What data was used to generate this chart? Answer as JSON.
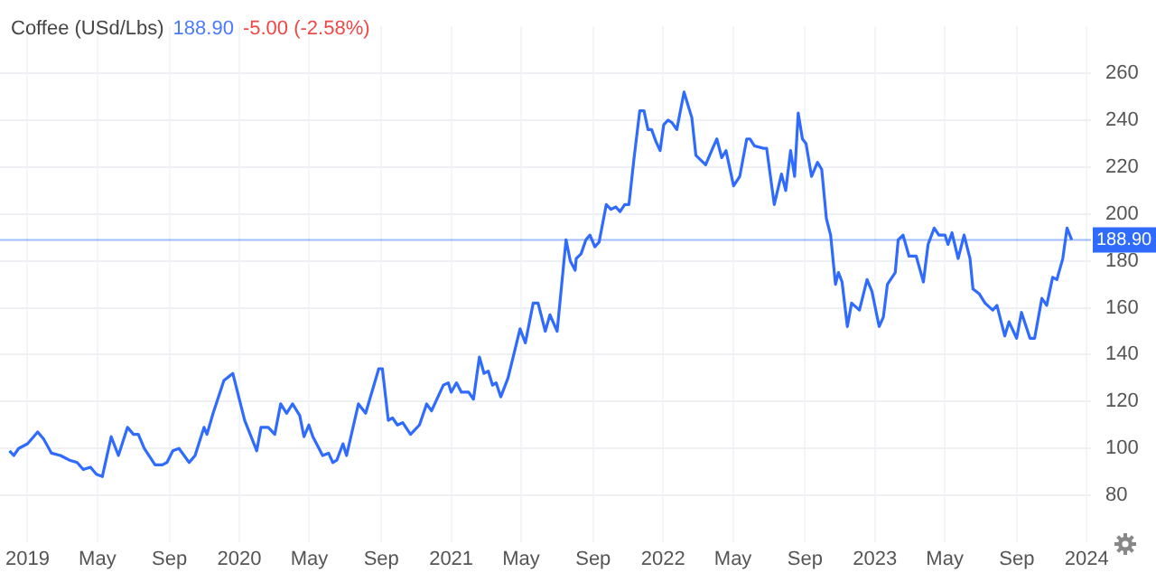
{
  "chart_data": {
    "type": "line",
    "title": "Coffee (USd/Lbs)",
    "annotations": [
      "188.90",
      "-5.00 (-2.58%)"
    ],
    "x": [
      2018.915,
      2018.935,
      2018.958,
      2019.0,
      2019.048,
      2019.076,
      2019.113,
      2019.155,
      2019.198,
      2019.234,
      2019.263,
      2019.297,
      2019.325,
      2019.353,
      2019.395,
      2019.429,
      2019.472,
      2019.5,
      2019.523,
      2019.551,
      2019.602,
      2019.636,
      2019.658,
      2019.686,
      2019.715,
      2019.763,
      2019.791,
      2019.833,
      2019.847,
      2019.876,
      2019.927,
      2019.969,
      2020.025,
      2020.082,
      2020.102,
      2020.136,
      2020.167,
      2020.195,
      2020.223,
      2020.251,
      2020.285,
      2020.305,
      2020.328,
      2020.347,
      2020.393,
      2020.421,
      2020.441,
      2020.46,
      2020.489,
      2020.506,
      2020.562,
      2020.596,
      2020.658,
      2020.675,
      2020.703,
      2020.723,
      2020.746,
      2020.771,
      2020.808,
      2020.85,
      2020.884,
      2020.907,
      2020.963,
      2020.986,
      2021.0,
      2021.025,
      2021.048,
      2021.082,
      2021.105,
      2021.133,
      2021.155,
      2021.175,
      2021.195,
      2021.212,
      2021.234,
      2021.268,
      2021.325,
      2021.35,
      2021.387,
      2021.41,
      2021.444,
      2021.466,
      2021.5,
      2021.542,
      2021.562,
      2021.585,
      2021.59,
      2021.613,
      2021.636,
      2021.655,
      2021.678,
      2021.698,
      2021.732,
      2021.754,
      2021.777,
      2021.797,
      2021.819,
      2021.839,
      2021.862,
      2021.89,
      2021.91,
      2021.929,
      2021.946,
      2021.966,
      2021.986,
      2022.003,
      2022.023,
      2022.042,
      2022.065,
      2022.099,
      2022.136,
      2022.155,
      2022.178,
      2022.201,
      2022.234,
      2022.254,
      2022.277,
      2022.297,
      2022.333,
      2022.362,
      2022.395,
      2022.41,
      2022.432,
      2022.475,
      2022.489,
      2022.525,
      2022.559,
      2022.579,
      2022.602,
      2022.621,
      2022.638,
      2022.658,
      2022.675,
      2022.701,
      2022.729,
      2022.749,
      2022.771,
      2022.791,
      2022.814,
      2022.828,
      2022.845,
      2022.87,
      2022.89,
      2022.927,
      2022.963,
      2022.986,
      2023.02,
      2023.04,
      2023.059,
      2023.096,
      2023.11,
      2023.133,
      2023.161,
      2023.195,
      2023.229,
      2023.251,
      2023.28,
      2023.302,
      2023.331,
      2023.345,
      2023.364,
      2023.393,
      2023.421,
      2023.449,
      2023.463,
      2023.492,
      2023.52,
      2023.556,
      2023.576,
      2023.613,
      2023.633,
      2023.669,
      2023.692,
      2023.732,
      2023.754,
      2023.788,
      2023.811,
      2023.839,
      2023.859,
      2023.887,
      2023.907,
      2023.929
    ],
    "series": [
      {
        "color": "#2f6bff",
        "values": [
          99,
          97,
          100,
          102,
          107,
          104,
          98,
          97,
          95,
          94,
          91,
          92,
          89,
          88,
          105,
          97,
          109,
          106,
          106,
          100,
          93,
          93,
          94,
          99,
          100,
          94,
          97,
          109,
          106,
          115,
          129,
          132,
          112,
          99,
          109,
          109,
          106,
          119,
          115,
          119,
          114,
          105,
          110,
          105,
          97,
          98,
          94,
          95,
          102,
          97,
          119,
          115,
          134,
          134,
          112,
          113,
          110,
          111,
          106,
          110,
          119,
          116,
          127,
          128,
          124,
          128,
          124,
          124,
          121,
          139,
          132,
          133,
          127,
          128,
          122,
          130,
          151,
          145,
          162,
          162,
          150,
          157,
          150,
          189,
          180,
          176,
          181,
          183,
          189,
          191,
          186,
          188,
          204,
          202,
          203,
          201,
          204,
          204,
          223,
          244,
          244,
          236,
          236,
          231,
          227,
          238,
          240,
          239,
          236,
          252,
          241,
          225,
          223,
          221,
          228,
          232,
          224,
          227,
          212,
          216,
          232,
          232,
          229,
          228,
          228,
          204,
          217,
          210,
          227,
          216,
          243,
          232,
          230,
          216,
          222,
          219,
          198,
          191,
          170,
          175,
          171,
          152,
          162,
          159,
          172,
          167,
          152,
          156,
          170,
          175,
          189,
          191,
          182,
          182,
          171,
          187,
          194,
          191,
          191,
          187,
          192,
          181,
          191,
          181,
          168,
          166,
          162,
          159,
          161,
          148,
          154,
          147,
          158,
          147,
          147,
          164,
          161,
          173,
          172,
          181,
          194,
          189
        ]
      }
    ],
    "xlim": [
      2018.87,
      2024.02
    ],
    "xticks": [
      {
        "value": 2019,
        "label": "2019"
      },
      {
        "value": 2019.33,
        "label": "May"
      },
      {
        "value": 2019.67,
        "label": "Sep"
      },
      {
        "value": 2020,
        "label": "2020"
      },
      {
        "value": 2020.33,
        "label": "May"
      },
      {
        "value": 2020.67,
        "label": "Sep"
      },
      {
        "value": 2021,
        "label": "2021"
      },
      {
        "value": 2021.33,
        "label": "May"
      },
      {
        "value": 2021.67,
        "label": "Sep"
      },
      {
        "value": 2022,
        "label": "2022"
      },
      {
        "value": 2022.33,
        "label": "May"
      },
      {
        "value": 2022.67,
        "label": "Sep"
      },
      {
        "value": 2023,
        "label": "2023"
      },
      {
        "value": 2023.33,
        "label": "May"
      },
      {
        "value": 2023.67,
        "label": "Sep"
      },
      {
        "value": 2024,
        "label": "2024"
      }
    ],
    "ylim": [
      60,
      280
    ],
    "yticks": [
      80,
      100,
      120,
      140,
      160,
      180,
      200,
      220,
      240,
      260
    ],
    "grid": true,
    "marker": "none",
    "line_style": "solid",
    "ref_lines": [
      {
        "axis": "y",
        "value": 188.9,
        "label": "188.90",
        "color": "#2f6bff"
      }
    ]
  }
}
